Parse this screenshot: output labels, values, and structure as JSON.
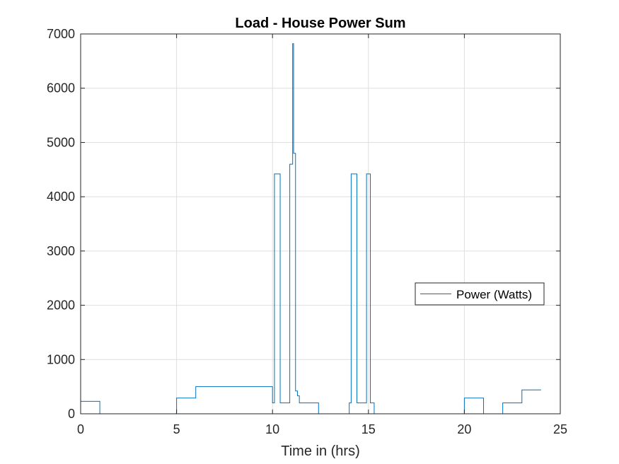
{
  "chart_data": {
    "type": "line",
    "title": "Load - House Power Sum",
    "xlabel": "Time in (hrs)",
    "ylabel": "",
    "xlim": [
      0,
      25
    ],
    "ylim": [
      0,
      7000
    ],
    "xticks": [
      0,
      5,
      10,
      15,
      20,
      25
    ],
    "yticks": [
      0,
      1000,
      2000,
      3000,
      4000,
      5000,
      6000,
      7000
    ],
    "xtick_labels": [
      "0",
      "5",
      "10",
      "15",
      "20",
      "25"
    ],
    "ytick_labels": [
      "0",
      "1000",
      "2000",
      "3000",
      "4000",
      "5000",
      "6000",
      "7000"
    ],
    "grid": true,
    "legend_position": "right",
    "colors": {
      "series": "#0072bd",
      "grid": "#dfdfdf",
      "axes": "#262626"
    },
    "series": [
      {
        "name": "Power (Watts)",
        "x": [
          0,
          1,
          1,
          4.98,
          5,
          5,
          6,
          6,
          10,
          10,
          10.1,
          10.1,
          10.4,
          10.4,
          10.9,
          10.9,
          11.05,
          11.05,
          11.1,
          11.1,
          11.2,
          11.2,
          11.3,
          11.3,
          11.4,
          11.4,
          12.4,
          12.4,
          14,
          14,
          14.1,
          14.1,
          14.4,
          14.4,
          14.9,
          14.9,
          15.1,
          15.1,
          15.3,
          15.3,
          20,
          20,
          21,
          21,
          22,
          22,
          23,
          23,
          24
        ],
        "y": [
          230,
          230,
          0,
          0,
          30,
          290,
          290,
          500,
          500,
          200,
          200,
          4420,
          4420,
          200,
          200,
          4600,
          4600,
          6820,
          6820,
          4800,
          4800,
          420,
          420,
          330,
          330,
          200,
          200,
          0,
          0,
          200,
          200,
          4420,
          4420,
          200,
          200,
          4420,
          4420,
          200,
          200,
          0,
          0,
          290,
          290,
          0,
          0,
          200,
          200,
          440,
          440
        ]
      }
    ]
  }
}
